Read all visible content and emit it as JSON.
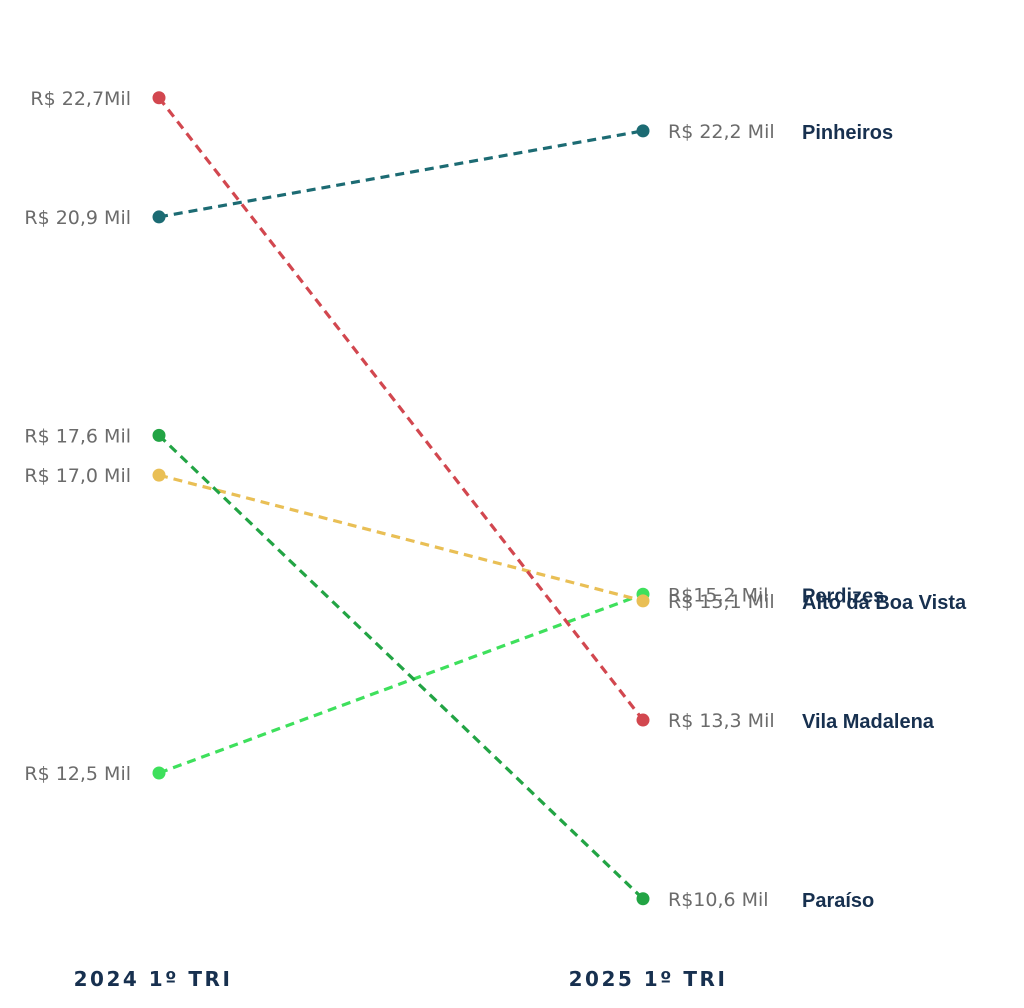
{
  "chart_data": {
    "type": "line",
    "x": [
      "2024 1º TRI",
      "2025 1º TRI"
    ],
    "series": [
      {
        "name": "Pinheiros",
        "values": [
          20.9,
          22.2
        ],
        "labels": [
          "R$ 20,9 Mil",
          "R$ 22,2 Mil"
        ],
        "color": "#1c6b73"
      },
      {
        "name": "Perdizes",
        "values": [
          12.5,
          15.2
        ],
        "labels": [
          "R$ 12,5 Mil",
          "R$15,2 Mil"
        ],
        "color": "#3ee05c"
      },
      {
        "name": "Alto da Boa Vista",
        "values": [
          17.0,
          15.1
        ],
        "labels": [
          "R$ 17,0 Mil",
          "R$ 15,1 Mil"
        ],
        "color": "#e9bf55"
      },
      {
        "name": "Vila Madalena",
        "values": [
          22.7,
          13.3
        ],
        "labels": [
          "R$ 22,7Mil",
          "R$ 13,3 Mil"
        ],
        "color": "#d2474f"
      },
      {
        "name": "Paraíso",
        "values": [
          17.6,
          10.6
        ],
        "labels": [
          "R$ 17,6 Mil",
          "R$10,6 Mil"
        ],
        "color": "#22a444"
      }
    ],
    "line_style": "dashed",
    "grid": false
  }
}
